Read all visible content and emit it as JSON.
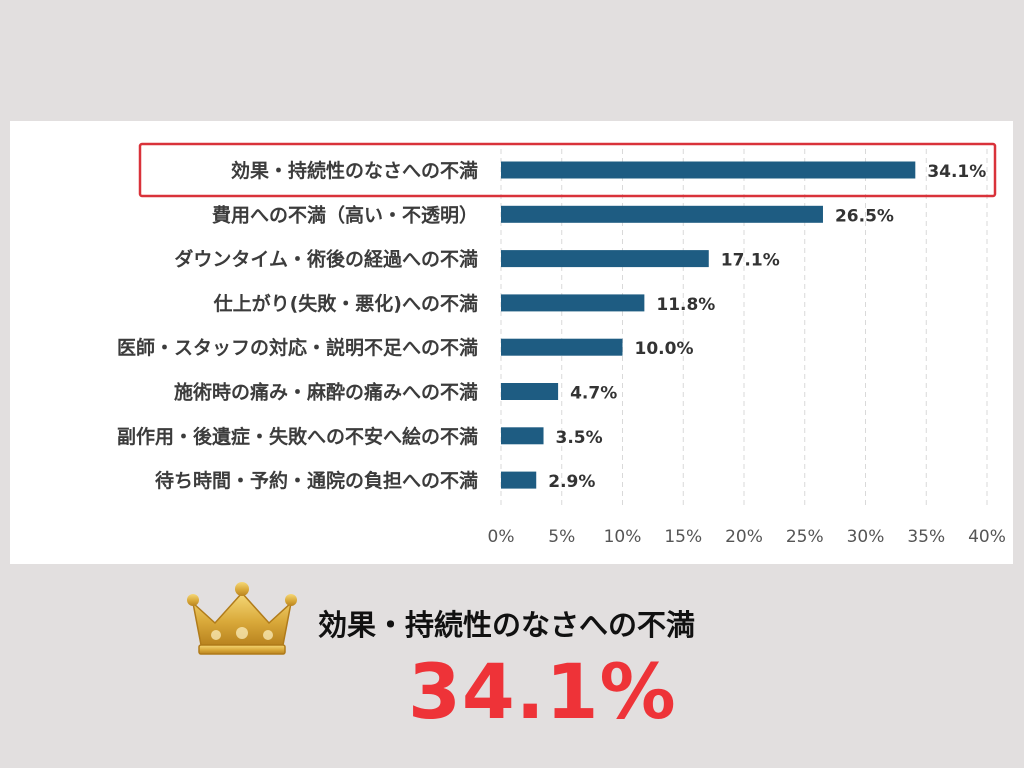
{
  "chart_data": {
    "type": "bar",
    "orientation": "horizontal",
    "categories": [
      "効果・持続性のなさへの不満",
      "費用への不満（高い・不透明）",
      "ダウンタイム・術後の経過への不満",
      "仕上がり(失敗・悪化)への不満",
      "医師・スタッフの対応・説明不足への不満",
      "施術時の痛み・麻酔の痛みへの不満",
      "副作用・後遺症・失敗への不安へ絵の不満",
      "待ち時間・予約・通院の負担への不満"
    ],
    "values": [
      34.1,
      26.5,
      17.1,
      11.8,
      10.0,
      4.7,
      3.5,
      2.9
    ],
    "value_labels": [
      "34.1%",
      "26.5%",
      "17.1%",
      "11.8%",
      "10.0%",
      "4.7%",
      "3.5%",
      "2.9%"
    ],
    "xlim": [
      0,
      40
    ],
    "x_ticks": [
      "0%",
      "5%",
      "10%",
      "15%",
      "20%",
      "25%",
      "30%",
      "35%",
      "40%"
    ],
    "grid": "vertical-dashed",
    "highlighted_index": 0,
    "bar_color": "#1e5c82",
    "highlight_color": "#d9323a"
  },
  "summary": {
    "label": "効果・持続性のなさへの不満",
    "value": "34.1%",
    "value_color": "#ee3338",
    "icon": "crown-icon"
  }
}
